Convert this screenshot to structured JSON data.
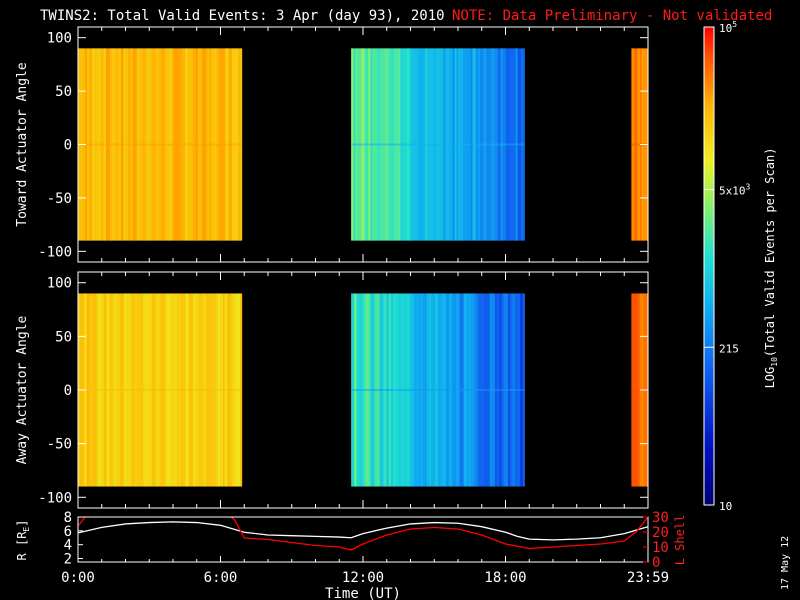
{
  "header": {
    "title": "TWINS2: Total Valid Events:  3 Apr (day  93), 2010",
    "note": "NOTE: Data Preliminary - Not validated"
  },
  "footer": {
    "date_stamp": "17 May 12"
  },
  "colors": {
    "background": "#000000",
    "axes": "#ffffff",
    "note": "#ff1a1a",
    "lshell": "#ff0000",
    "radius": "#ffffff"
  },
  "chart_data": [
    {
      "type": "heatmap",
      "ylabel": "Toward Actuator Angle",
      "x_range_hours": [
        0,
        24
      ],
      "ylim": [
        -110,
        110
      ],
      "y_ticks": [
        100,
        50,
        0,
        -50,
        -100
      ],
      "y_data_range": [
        -90,
        90
      ],
      "segments": [
        {
          "start_h": 0.0,
          "end_h": 6.9,
          "level": 0.82
        },
        {
          "start_h": 11.5,
          "end_h": 18.8,
          "level": 0.38
        },
        {
          "start_h": 23.3,
          "end_h": 24.0,
          "level": 0.9
        }
      ]
    },
    {
      "type": "heatmap",
      "ylabel": "Away Actuator Angle",
      "x_range_hours": [
        0,
        24
      ],
      "ylim": [
        -110,
        110
      ],
      "y_ticks": [
        100,
        50,
        0,
        -50,
        -100
      ],
      "y_data_range": [
        -90,
        90
      ],
      "segments": [
        {
          "start_h": 0.0,
          "end_h": 6.9,
          "level": 0.78
        },
        {
          "start_h": 11.5,
          "end_h": 18.8,
          "level": 0.34
        },
        {
          "start_h": 23.3,
          "end_h": 24.0,
          "level": 0.9
        }
      ]
    },
    {
      "type": "line",
      "xlabel": "Time (UT)",
      "x_tick_labels": [
        "0:00",
        "6:00",
        "12:00",
        "18:00",
        "23:59"
      ],
      "x_tick_hours": [
        0,
        6,
        12,
        18,
        24
      ],
      "left_axis": {
        "label": "R [RE]",
        "label_main": "R [R",
        "label_sub": "E",
        "label_end": "]",
        "ylim": [
          1.5,
          8
        ],
        "ticks": [
          "8",
          "6",
          "4",
          "2"
        ],
        "tick_values": [
          8,
          6,
          4,
          2
        ]
      },
      "right_axis": {
        "label": "L Shell",
        "ylim": [
          0,
          30
        ],
        "ticks": [
          "30",
          "20",
          "10",
          "0"
        ],
        "tick_values": [
          30,
          20,
          10,
          0
        ]
      },
      "series": [
        {
          "name": "R",
          "axis": "left",
          "x": [
            0,
            1,
            2,
            3,
            4,
            5,
            6,
            7,
            8,
            9,
            10,
            11,
            11.5,
            12,
            13,
            14,
            15,
            16,
            17,
            18,
            18.5,
            19,
            20,
            21,
            22,
            23,
            24
          ],
          "y": [
            5.7,
            6.5,
            7.0,
            7.2,
            7.3,
            7.2,
            6.8,
            5.8,
            5.4,
            5.3,
            5.2,
            5.1,
            5.0,
            5.6,
            6.4,
            7.0,
            7.2,
            7.1,
            6.6,
            5.8,
            5.2,
            4.8,
            4.7,
            4.8,
            5.0,
            5.6,
            6.6
          ]
        },
        {
          "name": "L Shell",
          "axis": "right",
          "x": [
            0,
            0.3,
            0.6,
            6.2,
            6.6,
            7.0,
            8,
            9,
            10,
            11,
            11.5,
            12,
            13,
            14,
            15,
            16,
            17,
            18,
            19,
            20,
            21,
            22,
            23,
            23.5,
            24
          ],
          "y": [
            24,
            30,
            33,
            33,
            28,
            16,
            15,
            13,
            11,
            10,
            8,
            12,
            18,
            22,
            23,
            22,
            18,
            12,
            9,
            10,
            11,
            12,
            14,
            20,
            30
          ]
        }
      ]
    }
  ],
  "colorbar": {
    "label": "LOG10(Total Valid Events per Scan)",
    "label_main": "LOG",
    "label_sub": "10",
    "label_end": "(Total Valid Events per Scan)",
    "tick_labels": [
      {
        "base": "10",
        "sup": "5",
        "frac": 1.0
      },
      {
        "base": "5x10",
        "sup": "3",
        "frac": 0.66
      },
      {
        "base": "215",
        "sup": "",
        "frac": 0.33
      },
      {
        "base": "10",
        "sup": "",
        "frac": 0.0
      }
    ]
  }
}
